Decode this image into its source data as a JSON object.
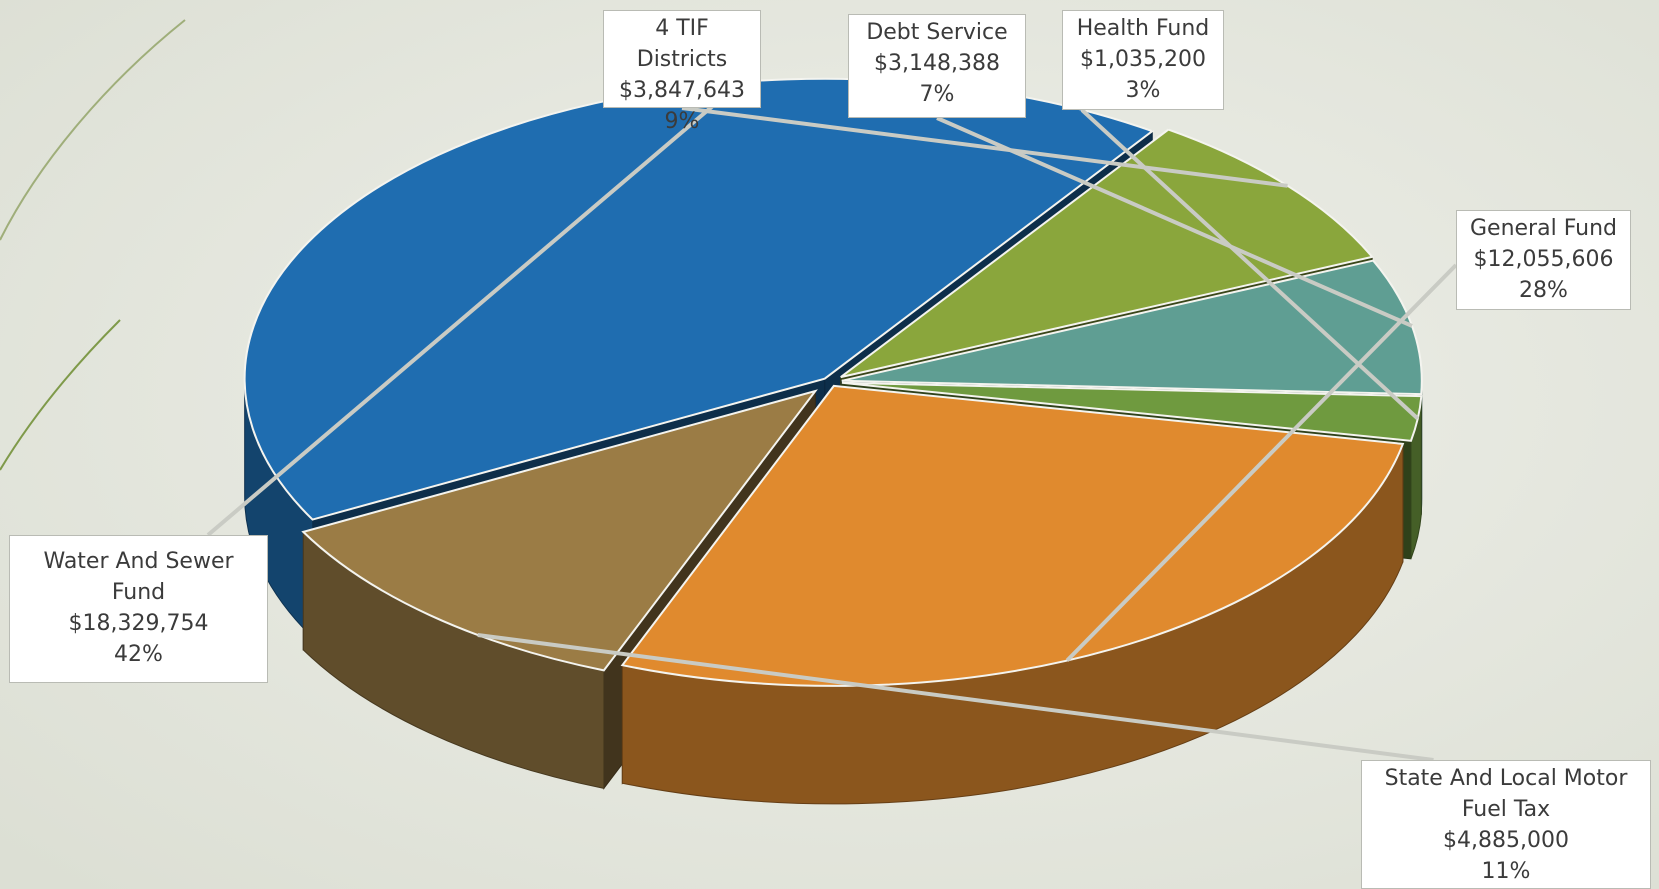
{
  "chart_data": {
    "type": "pie",
    "style": "3d-exploded",
    "slices": [
      {
        "label": "Water And Sewer Fund",
        "label_lines": [
          "Water And Sewer",
          "Fund"
        ],
        "value": 18329754,
        "value_text": "$18,329,754",
        "percent_text": "42%",
        "color": "#1f6db0"
      },
      {
        "label": "4 TIF Districts",
        "label_lines": [
          "4 TIF Districts"
        ],
        "value": 3847643,
        "value_text": "$3,847,643",
        "percent_text": "9%",
        "color": "#8aa63c"
      },
      {
        "label": "Debt Service",
        "label_lines": [
          "Debt Service"
        ],
        "value": 3148388,
        "value_text": "$3,148,388",
        "percent_text": "7%",
        "color": "#5f9e93"
      },
      {
        "label": "Health Fund",
        "label_lines": [
          "Health Fund"
        ],
        "value": 1035200,
        "value_text": "$1,035,200",
        "percent_text": "3%",
        "color": "#6f9a3f"
      },
      {
        "label": "General Fund",
        "label_lines": [
          "General Fund"
        ],
        "value": 12055606,
        "value_text": "$12,055,606",
        "percent_text": "28%",
        "color": "#e08a2e"
      },
      {
        "label": "State And Local Motor Fuel Tax",
        "label_lines": [
          "State And Local Motor",
          "Fuel Tax"
        ],
        "value": 4885000,
        "value_text": "$4,885,000",
        "percent_text": "11%",
        "color": "#9b7c45"
      }
    ]
  }
}
